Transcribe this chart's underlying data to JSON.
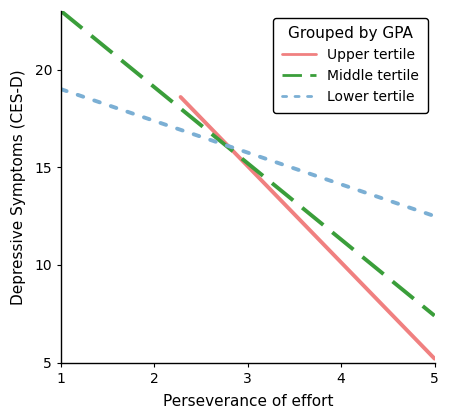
{
  "title": "",
  "xlabel": "Perseverance of effort",
  "ylabel": "Depressive Symptoms (CES-D)",
  "xlim": [
    1,
    5
  ],
  "ylim": [
    5,
    23
  ],
  "xticks": [
    1,
    2,
    3,
    4,
    5
  ],
  "yticks": [
    5,
    10,
    15,
    20
  ],
  "legend_title": "Grouped by GPA",
  "lines": [
    {
      "label": "Upper tertile",
      "x": [
        2.28,
        5.0
      ],
      "y": [
        18.6,
        5.2
      ],
      "color": "#F08080",
      "linestyle": "solid",
      "linewidth": 2.8
    },
    {
      "label": "Middle tertile",
      "x": [
        1.0,
        5.0
      ],
      "y": [
        23.0,
        7.4
      ],
      "color": "#3A9E3A",
      "linestyle": "dashed",
      "linewidth": 2.8,
      "dash_seq": [
        7,
        3
      ]
    },
    {
      "label": "Lower tertile",
      "x": [
        1.0,
        5.0
      ],
      "y": [
        19.0,
        12.5
      ],
      "color": "#7BAFD4",
      "linestyle": "dotted",
      "linewidth": 2.8,
      "dot_seq": [
        1.5,
        3
      ]
    }
  ],
  "background_color": "#ffffff",
  "tick_fontsize": 10,
  "label_fontsize": 11,
  "legend_fontsize": 10,
  "legend_title_fontsize": 11
}
